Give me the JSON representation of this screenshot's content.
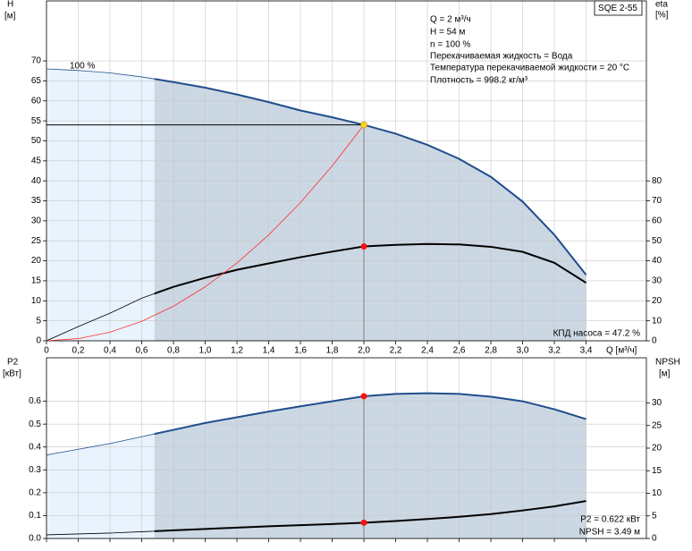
{
  "chart_data": [
    {
      "type": "line",
      "model": "SQE 2-55",
      "info": [
        "Q = 2 м³/ч",
        "H = 54 м",
        "n = 100 %",
        "Перекачиваемая жидкость = Вода",
        "Температура перекачиваемой жидкости = 20 °C",
        "Плотность = 998.2 кг/м³"
      ],
      "curve_label": "100 %",
      "efficiency_label": "КПД насоса = 47.2 %",
      "ylabel": "H",
      "yunit": "[м]",
      "y2label": "eta",
      "y2unit": "[%]",
      "xlabel": "Q [м³/ч]",
      "x": [
        0,
        0.2,
        0.4,
        0.6,
        0.8,
        1.0,
        1.2,
        1.4,
        1.6,
        1.8,
        2.0,
        2.2,
        2.4,
        2.6,
        2.8,
        3.0,
        3.2,
        3.4
      ],
      "xlim": [
        0,
        3.78
      ],
      "xticks": [
        0,
        {
          "value": 0.2,
          "label": "0,2"
        },
        {
          "value": 0.4,
          "label": "0,4"
        },
        {
          "value": 0.6,
          "label": "0,6"
        },
        {
          "value": 0.8,
          "label": "0,8"
        },
        {
          "value": 1.0,
          "label": "1,0"
        },
        {
          "value": 1.2,
          "label": "1,2"
        },
        {
          "value": 1.4,
          "label": "1,4"
        },
        {
          "value": 1.6,
          "label": "1,6"
        },
        {
          "value": 1.8,
          "label": "1,8"
        },
        {
          "value": 2.0,
          "label": "2,0"
        },
        {
          "value": 2.2,
          "label": "2,2"
        },
        {
          "value": 2.4,
          "label": "2,4"
        },
        {
          "value": 2.6,
          "label": "2,6"
        },
        {
          "value": 2.8,
          "label": "2,8"
        },
        {
          "value": 3.0,
          "label": "3,0"
        },
        {
          "value": 3.2,
          "label": "3,2"
        },
        {
          "value": 3.4,
          "label": "3,4"
        }
      ],
      "xtick_labels": true,
      "ylim": [
        0,
        85
      ],
      "yticks": [
        0,
        5,
        10,
        15,
        20,
        25,
        30,
        35,
        40,
        45,
        50,
        55,
        60,
        65,
        70
      ],
      "y2lim": [
        0,
        170
      ],
      "y2ticks": [
        0,
        10,
        20,
        30,
        40,
        50,
        60,
        70,
        80
      ],
      "grid": true,
      "operating_range": [
        0.68,
        3.4
      ],
      "duty_x": 2.0,
      "series": [
        {
          "name": "H",
          "color": "#1f4e8c",
          "marker": "#ffd21f",
          "values": [
            68,
            67.6,
            67.0,
            66.0,
            64.7,
            63.3,
            61.6,
            59.7,
            57.6,
            55.9,
            54,
            51.8,
            49,
            45.5,
            41,
            34.8,
            26.5,
            16.5
          ]
        },
        {
          "name": "eta",
          "axis": "y2",
          "color": "#000000",
          "marker": "#ff1010",
          "values": [
            0,
            7.1,
            13.8,
            21.3,
            27,
            31.5,
            35.5,
            38.7,
            41.8,
            44.6,
            47.2,
            48,
            48.4,
            48.2,
            47,
            44.5,
            39,
            29
          ]
        },
        {
          "color": "#ff3030",
          "values": [
            0,
            0.54,
            2.16,
            4.86,
            8.64,
            13.5,
            19.44,
            26.46,
            34.56,
            43.74,
            54,
            null,
            null,
            null,
            null,
            null,
            null,
            null
          ]
        }
      ]
    },
    {
      "type": "line",
      "ylabel": "P2",
      "yunit": "[кВт]",
      "y2label": "NPSH",
      "y2unit": "[м]",
      "power_label": "P2 = 0.622 кВт",
      "npsh_label": "NPSH = 3.49 м",
      "x": [
        0,
        0.2,
        0.4,
        0.6,
        0.8,
        1.0,
        1.2,
        1.4,
        1.6,
        1.8,
        2.0,
        2.2,
        2.4,
        2.6,
        2.8,
        3.0,
        3.2,
        3.4
      ],
      "xlim": [
        0,
        3.78
      ],
      "xticks": [
        0,
        0.2,
        0.4,
        0.6,
        0.8,
        1.0,
        1.2,
        1.4,
        1.6,
        1.8,
        2.0,
        2.2,
        2.4,
        2.6,
        2.8,
        3.0,
        3.2,
        3.4
      ],
      "xtick_labels": false,
      "ylim": [
        0,
        0.79
      ],
      "yticks": [
        {
          "value": 0,
          "label": "0.0"
        },
        0.1,
        0.2,
        0.3,
        0.4,
        0.5,
        0.6
      ],
      "y2lim": [
        0,
        40
      ],
      "y2ticks": [
        0,
        5,
        10,
        15,
        20,
        25,
        30
      ],
      "grid": true,
      "operating_range": [
        0.68,
        3.4
      ],
      "duty_x": 2.0,
      "series": [
        {
          "name": "P2",
          "color": "#1f4e8c",
          "marker": "#ff1010",
          "values": [
            0.365,
            0.39,
            0.415,
            0.445,
            0.475,
            0.505,
            0.53,
            0.555,
            0.578,
            0.6,
            0.622,
            0.632,
            0.635,
            0.632,
            0.62,
            0.6,
            0.565,
            0.522
          ]
        },
        {
          "name": "NPSH",
          "axis": "y2",
          "color": "#000000",
          "marker": "#ff1010",
          "values": [
            0.8,
            1.0,
            1.2,
            1.5,
            1.8,
            2.1,
            2.4,
            2.7,
            2.95,
            3.2,
            3.49,
            3.85,
            4.3,
            4.8,
            5.4,
            6.2,
            7.1,
            8.3
          ]
        }
      ]
    }
  ]
}
